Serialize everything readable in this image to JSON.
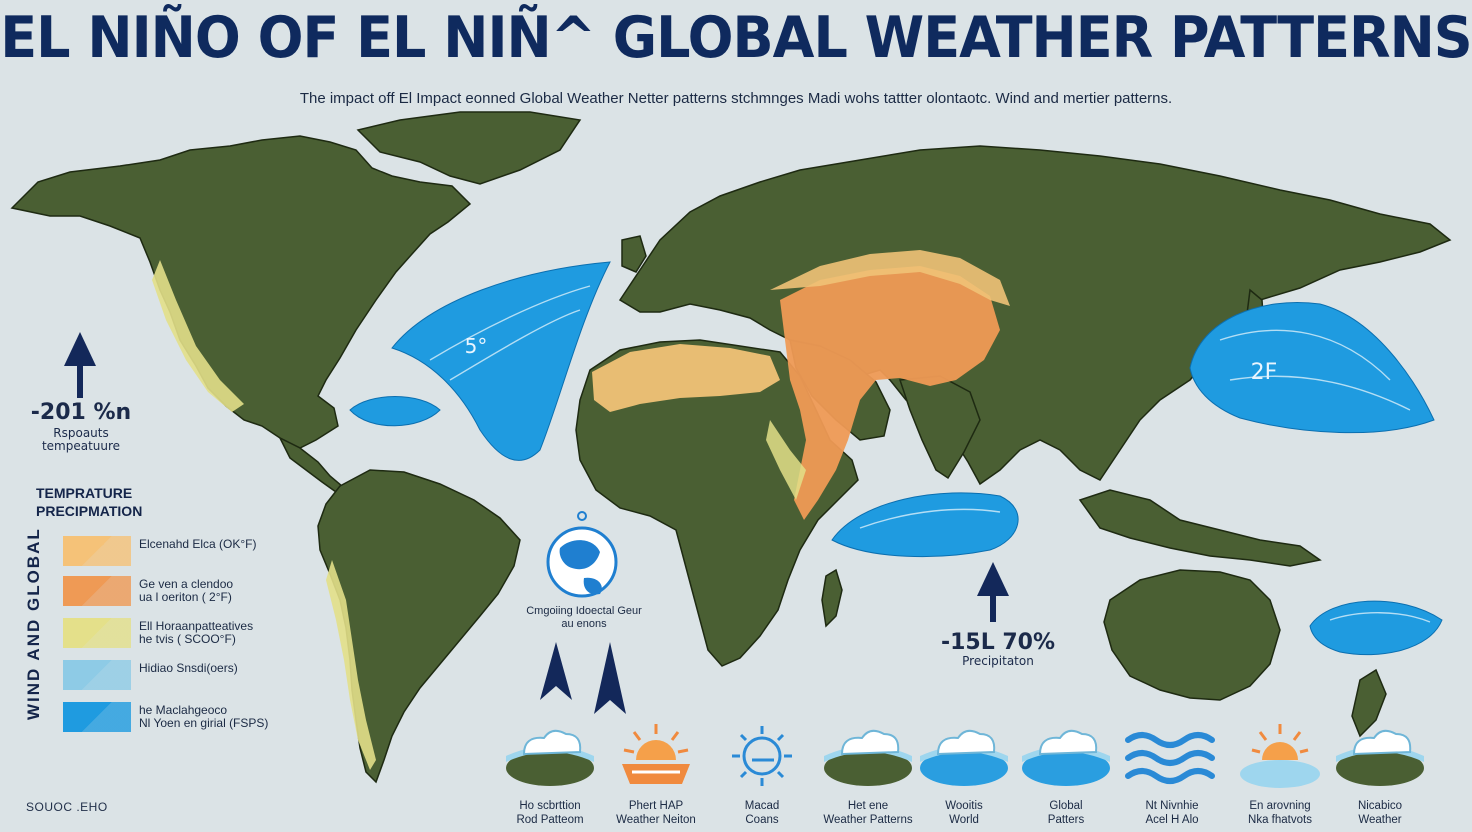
{
  "title": "EL NIÑO OF EL NIÑ^ GLOBAL WEATHER PATTERNS",
  "subtitle": "The impact off El Impact eonned Global Weather Netter patterns stchmnges Madi wohs tattter olontaotc. Wind and mertier patterns.",
  "callouts": {
    "west": {
      "value": "-201 %n",
      "label": "Rspoauts tempeatuure"
    },
    "atlantic_temp": "5°",
    "pacific_temp": "2F",
    "indian": {
      "value": "-15L 70%",
      "label": "Precipitaton"
    }
  },
  "globe_label": "Cmgoiing Idoectal Geur au enons",
  "legend": {
    "heading_lines": [
      "TEMPRATURE",
      "PRECIPMATION"
    ],
    "vertical_label": "WIND AND GLOBAL",
    "items": [
      {
        "label": "Elcenahd Elca  (OK°F)",
        "color": "#f5c278"
      },
      {
        "label": "Ge ven a clendoo\nua l oeriton ( 2°F)",
        "color": "#ef9a55"
      },
      {
        "label": "Ell Horaanpatteatives\nhe tvis ( SCOO°F)",
        "color": "#e4e08a"
      },
      {
        "label": "Hidiao Snsdi(oers)",
        "color": "#8ecbe6"
      },
      {
        "label": "he Maclahgeoco\nNl Yoen en girial (FSPS)",
        "color": "#1f9be0"
      }
    ]
  },
  "weather_icons": [
    {
      "icon": "cloud-over-land-icon",
      "label": "Ho scbrttion\nRod Patteom"
    },
    {
      "icon": "sun-heat-icon",
      "label": "Phert HAP\nWeather Neiton"
    },
    {
      "icon": "wind-gear-icon",
      "label": "Macad\nCoans"
    },
    {
      "icon": "cloud-over-land-icon",
      "label": "Het ene\nWeather Patterns"
    },
    {
      "icon": "cloud-over-water-icon",
      "label": "Wooitis\nWorld"
    },
    {
      "icon": "cloud-over-water-icon",
      "label": "Global\nPatters"
    },
    {
      "icon": "waves-icon",
      "label": "Nt Nivnhie\nAcel H Alo"
    },
    {
      "icon": "sun-over-water-icon",
      "label": "En arovning\nNka fhatvots"
    },
    {
      "icon": "cloud-over-land-icon",
      "label": "Nicabico\nWeather"
    }
  ],
  "source": "SOUOC .EHO",
  "colors": {
    "ocean": "#dbe3e6",
    "land": "#4a5f33",
    "land_stroke": "#1e2a12",
    "arid": "#ef9a55",
    "semiarid": "#f0c277",
    "moist": "#e2df88",
    "ocean_anomaly": "#1f9be0",
    "title": "#0f2a5e"
  }
}
